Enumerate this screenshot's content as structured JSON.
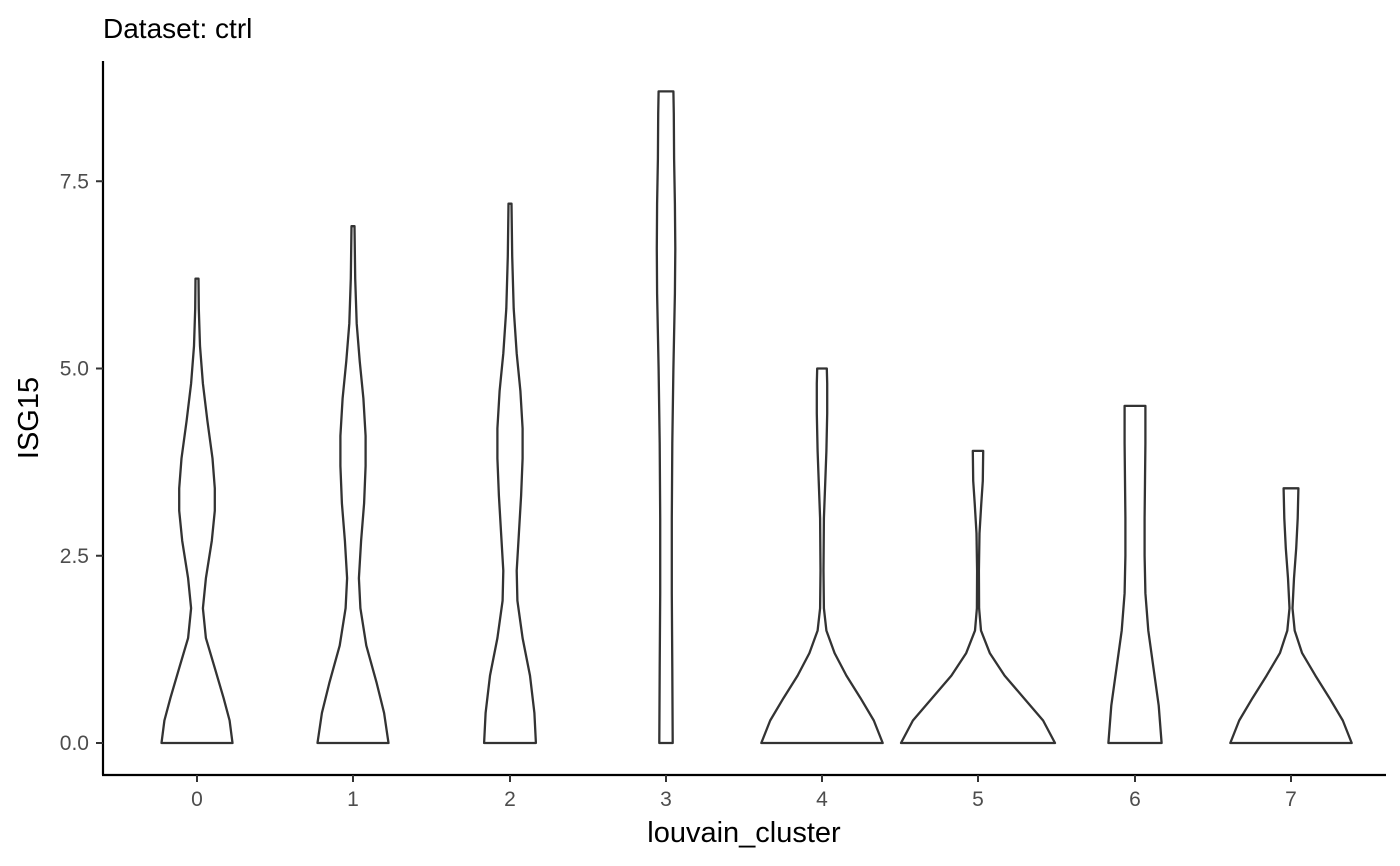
{
  "chart_data": {
    "type": "violin",
    "title": "Dataset: ctrl",
    "xlabel": "louvain_cluster",
    "ylabel": "ISG15",
    "categories": [
      "0",
      "1",
      "2",
      "3",
      "4",
      "5",
      "6",
      "7"
    ],
    "y_ticks": [
      "0.0",
      "2.5",
      "5.0",
      "7.5"
    ],
    "ylim": [
      -0.4,
      9.1
    ],
    "grid": false,
    "legend": "none",
    "series": [
      {
        "category": "0",
        "min": 0,
        "max": 6.2,
        "density": [
          [
            0,
            0.48
          ],
          [
            0.3,
            0.44
          ],
          [
            0.6,
            0.36
          ],
          [
            1.0,
            0.24
          ],
          [
            1.4,
            0.12
          ],
          [
            1.8,
            0.08
          ],
          [
            2.2,
            0.12
          ],
          [
            2.7,
            0.2
          ],
          [
            3.1,
            0.24
          ],
          [
            3.4,
            0.24
          ],
          [
            3.8,
            0.21
          ],
          [
            4.3,
            0.14
          ],
          [
            4.8,
            0.08
          ],
          [
            5.3,
            0.04
          ],
          [
            5.8,
            0.025
          ],
          [
            6.2,
            0.02
          ]
        ]
      },
      {
        "category": "1",
        "min": 0,
        "max": 6.9,
        "density": [
          [
            0,
            0.48
          ],
          [
            0.4,
            0.42
          ],
          [
            0.8,
            0.32
          ],
          [
            1.3,
            0.18
          ],
          [
            1.8,
            0.1
          ],
          [
            2.2,
            0.08
          ],
          [
            2.7,
            0.11
          ],
          [
            3.2,
            0.15
          ],
          [
            3.7,
            0.17
          ],
          [
            4.1,
            0.17
          ],
          [
            4.6,
            0.14
          ],
          [
            5.1,
            0.09
          ],
          [
            5.6,
            0.05
          ],
          [
            6.2,
            0.03
          ],
          [
            6.9,
            0.02
          ]
        ]
      },
      {
        "category": "2",
        "min": 0,
        "max": 7.2,
        "density": [
          [
            0,
            0.35
          ],
          [
            0.4,
            0.33
          ],
          [
            0.9,
            0.27
          ],
          [
            1.4,
            0.17
          ],
          [
            1.9,
            0.1
          ],
          [
            2.3,
            0.09
          ],
          [
            2.8,
            0.12
          ],
          [
            3.3,
            0.15
          ],
          [
            3.8,
            0.17
          ],
          [
            4.2,
            0.17
          ],
          [
            4.7,
            0.14
          ],
          [
            5.2,
            0.09
          ],
          [
            5.8,
            0.05
          ],
          [
            6.5,
            0.03
          ],
          [
            7.2,
            0.02
          ]
        ]
      },
      {
        "category": "3",
        "min": 0,
        "max": 8.7,
        "density": [
          [
            0,
            0.09
          ],
          [
            1.0,
            0.085
          ],
          [
            2.0,
            0.078
          ],
          [
            3.0,
            0.078
          ],
          [
            4.0,
            0.085
          ],
          [
            5.0,
            0.1
          ],
          [
            6.0,
            0.12
          ],
          [
            6.6,
            0.125
          ],
          [
            7.2,
            0.12
          ],
          [
            7.8,
            0.11
          ],
          [
            8.4,
            0.105
          ],
          [
            8.7,
            0.1
          ]
        ]
      },
      {
        "category": "4",
        "min": 0,
        "max": 5.0,
        "density": [
          [
            0,
            0.82
          ],
          [
            0.3,
            0.7
          ],
          [
            0.6,
            0.52
          ],
          [
            0.9,
            0.33
          ],
          [
            1.2,
            0.17
          ],
          [
            1.5,
            0.06
          ],
          [
            1.8,
            0.025
          ],
          [
            2.3,
            0.02
          ],
          [
            3.0,
            0.025
          ],
          [
            3.5,
            0.045
          ],
          [
            3.9,
            0.06
          ],
          [
            4.4,
            0.07
          ],
          [
            4.8,
            0.07
          ],
          [
            5.0,
            0.065
          ]
        ]
      },
      {
        "category": "5",
        "min": 0,
        "max": 3.9,
        "density": [
          [
            0,
            1.04
          ],
          [
            0.3,
            0.88
          ],
          [
            0.6,
            0.62
          ],
          [
            0.9,
            0.36
          ],
          [
            1.2,
            0.16
          ],
          [
            1.5,
            0.04
          ],
          [
            1.8,
            0.015
          ],
          [
            2.3,
            0.012
          ],
          [
            2.8,
            0.02
          ],
          [
            3.2,
            0.045
          ],
          [
            3.5,
            0.065
          ],
          [
            3.9,
            0.07
          ]
        ]
      },
      {
        "category": "6",
        "min": 0,
        "max": 4.5,
        "density": [
          [
            0,
            0.36
          ],
          [
            0.5,
            0.32
          ],
          [
            1.0,
            0.25
          ],
          [
            1.5,
            0.18
          ],
          [
            2.0,
            0.14
          ],
          [
            2.5,
            0.13
          ],
          [
            3.0,
            0.13
          ],
          [
            3.5,
            0.135
          ],
          [
            4.0,
            0.14
          ],
          [
            4.5,
            0.14
          ]
        ]
      },
      {
        "category": "7",
        "min": 0,
        "max": 3.4,
        "density": [
          [
            0,
            0.82
          ],
          [
            0.3,
            0.7
          ],
          [
            0.6,
            0.52
          ],
          [
            0.9,
            0.33
          ],
          [
            1.2,
            0.15
          ],
          [
            1.5,
            0.05
          ],
          [
            1.8,
            0.02
          ],
          [
            2.2,
            0.04
          ],
          [
            2.6,
            0.07
          ],
          [
            3.0,
            0.09
          ],
          [
            3.4,
            0.1
          ]
        ]
      }
    ]
  }
}
